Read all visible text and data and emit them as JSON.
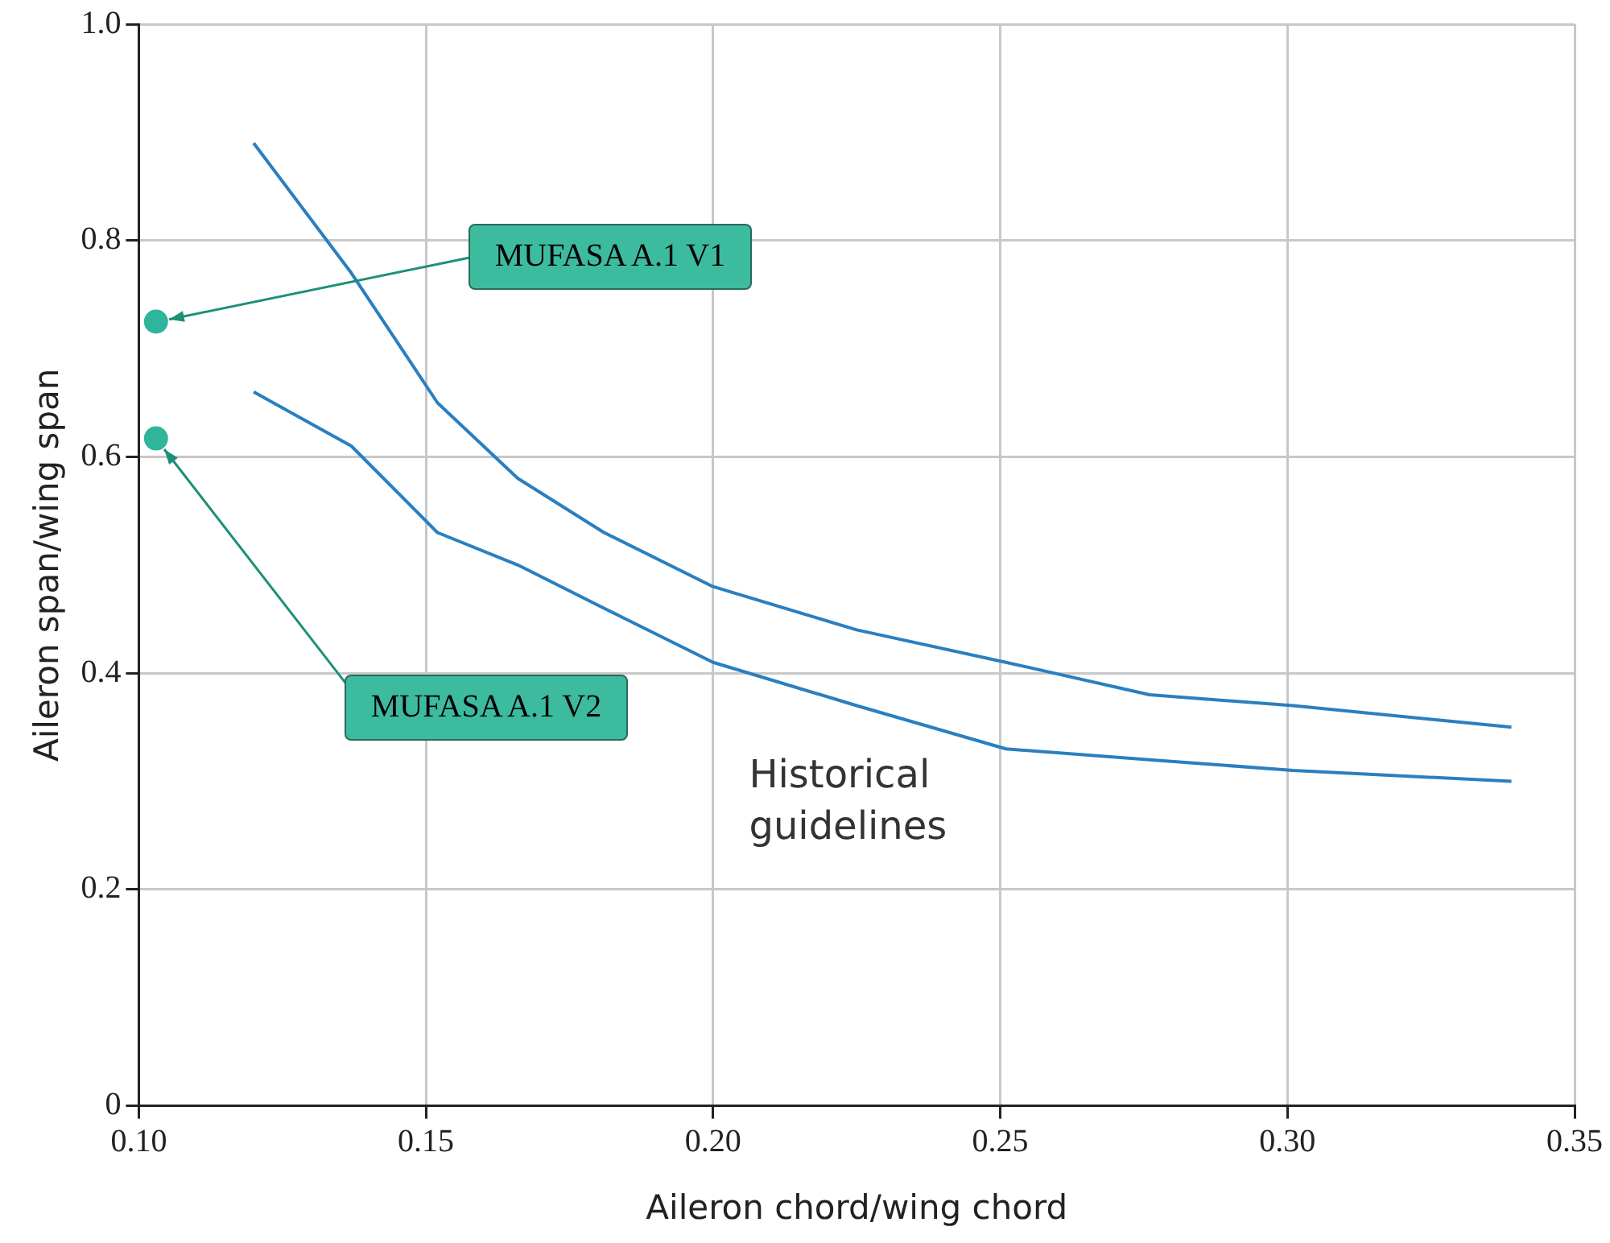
{
  "chart_data": {
    "type": "line",
    "xlabel": "Aileron chord/wing chord",
    "ylabel": "Aileron span/wing span",
    "xlim": [
      0.1,
      0.35
    ],
    "xticks": [
      {
        "value": 0.1,
        "label": "0.10"
      },
      {
        "value": 0.15,
        "label": "0.15"
      },
      {
        "value": 0.2,
        "label": "0.20"
      },
      {
        "value": 0.25,
        "label": "0.25"
      },
      {
        "value": 0.3,
        "label": "0.30"
      },
      {
        "value": 0.35,
        "label": "0.35"
      }
    ],
    "ylim": [
      0,
      1
    ],
    "yticks": [
      0,
      0.2,
      0.4,
      0.6,
      0.8,
      {
        "value": 1,
        "label": "1.0"
      }
    ],
    "grid": true,
    "legend": false,
    "series": [
      {
        "color": "#2a7fc0",
        "x": [
          0.12,
          0.137,
          0.152,
          0.166,
          0.181,
          0.2,
          0.225,
          0.251,
          0.276,
          0.301,
          0.339
        ],
        "values": [
          0.89,
          0.77,
          0.65,
          0.58,
          0.53,
          0.48,
          0.44,
          0.41,
          0.38,
          0.37,
          0.35
        ]
      },
      {
        "color": "#2a7fc0",
        "x": [
          0.12,
          0.137,
          0.152,
          0.166,
          0.181,
          0.2,
          0.225,
          0.251,
          0.276,
          0.301,
          0.339
        ],
        "values": [
          0.66,
          0.61,
          0.53,
          0.5,
          0.46,
          0.41,
          0.37,
          0.33,
          0.32,
          0.31,
          0.3
        ]
      },
      {
        "type": "scatter",
        "color": "#2fb59b",
        "x": [
          0.103,
          0.103
        ],
        "values": [
          0.725,
          0.617
        ]
      }
    ],
    "annotations": [
      {
        "text": "MUFASA A.1 V1",
        "x": 0.103,
        "y": 0.725
      },
      {
        "text": "MUFASA A.1 V2",
        "x": 0.103,
        "y": 0.617
      },
      "Historical guidelines"
    ]
  }
}
